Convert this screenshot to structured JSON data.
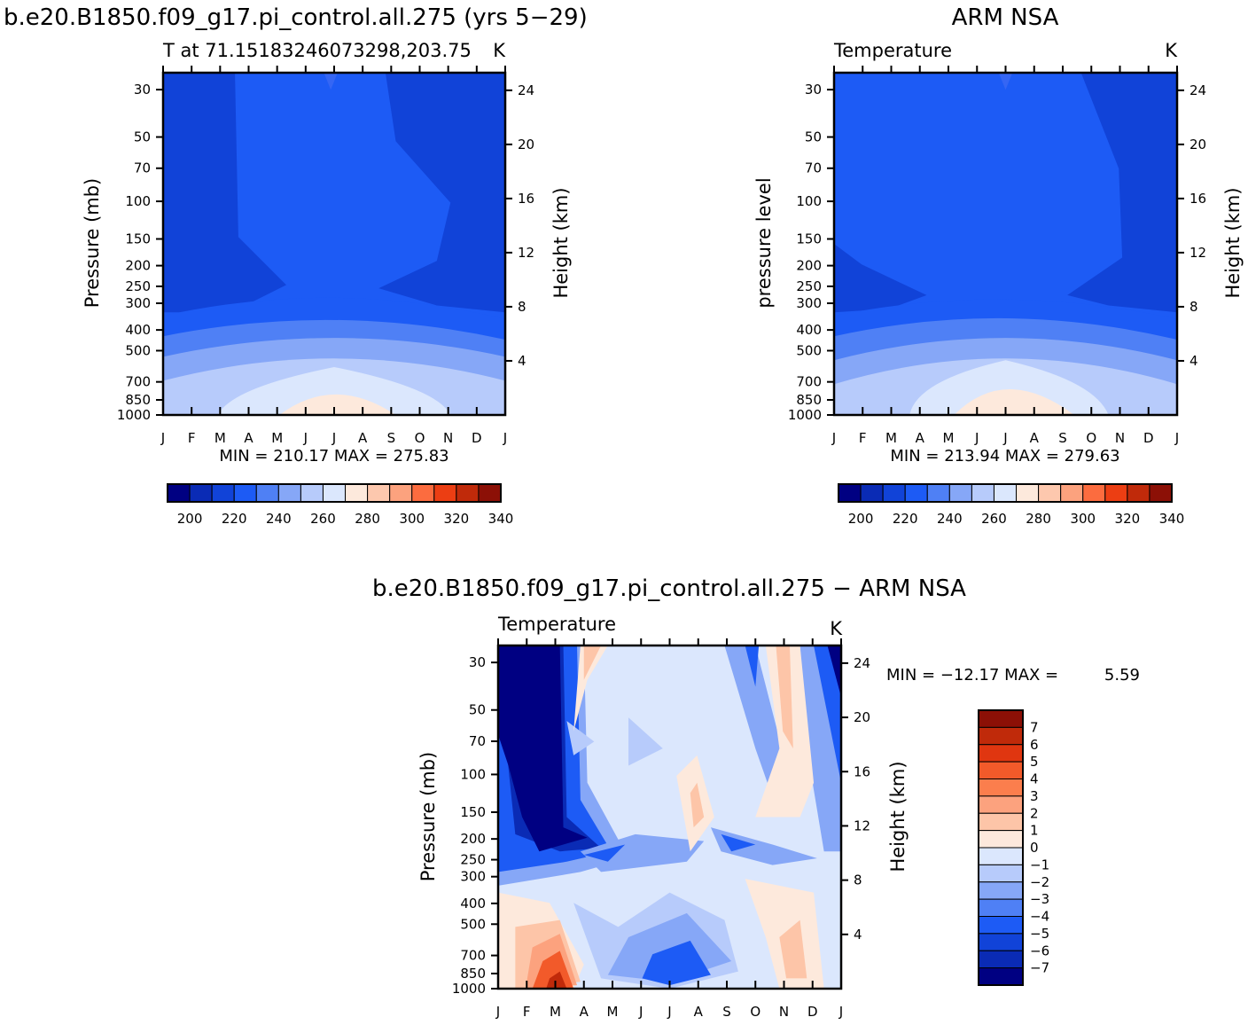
{
  "header": {
    "top_left_title": "b.e20.B1850.f09_g17.pi_control.all.275 (yrs 5−29)",
    "top_right_title": "ARM NSA",
    "bottom_title": "b.e20.B1850.f09_g17.pi_control.all.275 − ARM NSA"
  },
  "axes_common": {
    "months": [
      "J",
      "F",
      "M",
      "A",
      "M",
      "J",
      "J",
      "A",
      "S",
      "O",
      "N",
      "D",
      "J"
    ],
    "pressure_ticks": [
      30,
      50,
      70,
      100,
      150,
      200,
      250,
      300,
      400,
      500,
      700,
      850,
      1000
    ],
    "height_ticks": [
      24,
      20,
      16,
      12,
      8,
      4
    ],
    "height_label": "Height (km)",
    "unit": "K",
    "ylim_pressure_mb": [
      1000,
      25
    ],
    "ylim_height_km": [
      0,
      25.3
    ]
  },
  "chart_data": [
    {
      "type": "heatmap",
      "panel": "model",
      "title": "T at 71.15183246073298,203.75",
      "subtitle_right": "K",
      "ylabel": "Pressure (mb)",
      "stats": "MIN = 210.17 MAX = 275.83",
      "min": 210.17,
      "max": 275.83,
      "colorbar_ticks": [
        "200",
        "220",
        "240",
        "260",
        "280",
        "300",
        "320",
        "340"
      ],
      "colorbar_colors": [
        "#000082",
        "#0a2bb5",
        "#1143d8",
        "#1d5bf5",
        "#4f80f5",
        "#86a7f7",
        "#b7cbfb",
        "#dbe7fd",
        "#fde9dc",
        "#fdc8ae",
        "#fca27e",
        "#fc6c3f",
        "#ec3e13",
        "#c02a0a",
        "#8c1006"
      ],
      "series": [
        {
          "name": "1000",
          "values": [
            259,
            261,
            264,
            266,
            269,
            273,
            275,
            273,
            269,
            264,
            260,
            259,
            259
          ]
        },
        {
          "name": "850",
          "values": [
            254,
            256,
            259,
            261,
            264,
            267,
            269,
            268,
            264,
            259,
            256,
            254,
            254
          ]
        },
        {
          "name": "700",
          "values": [
            246,
            248,
            250,
            252,
            255,
            258,
            260,
            259,
            256,
            252,
            248,
            246,
            246
          ]
        },
        {
          "name": "500",
          "values": [
            230,
            231,
            233,
            235,
            238,
            241,
            243,
            242,
            239,
            235,
            232,
            230,
            230
          ]
        },
        {
          "name": "400",
          "values": [
            223,
            224,
            226,
            228,
            230,
            232,
            233,
            232,
            230,
            227,
            225,
            223,
            223
          ]
        },
        {
          "name": "300",
          "values": [
            217,
            217,
            218,
            220,
            222,
            224,
            225,
            224,
            222,
            220,
            218,
            217,
            217
          ]
        },
        {
          "name": "250",
          "values": [
            214,
            214,
            215,
            217,
            220,
            222,
            223,
            222,
            220,
            217,
            215,
            214,
            214
          ]
        },
        {
          "name": "200",
          "values": [
            215,
            215,
            215,
            217,
            220,
            222,
            223,
            222,
            220,
            217,
            215,
            215,
            215
          ]
        },
        {
          "name": "100",
          "values": [
            213,
            213,
            214,
            218,
            221,
            223,
            223,
            222,
            220,
            216,
            214,
            213,
            213
          ]
        },
        {
          "name": "30",
          "values": [
            211,
            211,
            213,
            218,
            222,
            224,
            225,
            223,
            219,
            214,
            212,
            211,
            211
          ]
        }
      ]
    },
    {
      "type": "heatmap",
      "panel": "observation",
      "title": "Temperature",
      "subtitle_right": "K",
      "ylabel": "pressure level",
      "stats": "MIN = 213.94 MAX = 279.63",
      "min": 213.94,
      "max": 279.63,
      "colorbar_ticks": [
        "200",
        "220",
        "240",
        "260",
        "280",
        "300",
        "320",
        "340"
      ],
      "series": [
        {
          "name": "1000",
          "values": [
            261,
            263,
            266,
            269,
            272,
            276,
            279,
            277,
            273,
            268,
            264,
            262,
            261
          ]
        },
        {
          "name": "850",
          "values": [
            256,
            258,
            261,
            264,
            267,
            270,
            273,
            271,
            268,
            263,
            259,
            257,
            256
          ]
        },
        {
          "name": "700",
          "values": [
            248,
            250,
            252,
            255,
            258,
            261,
            263,
            262,
            259,
            255,
            251,
            249,
            248
          ]
        },
        {
          "name": "500",
          "values": [
            231,
            232,
            234,
            237,
            240,
            243,
            245,
            244,
            241,
            237,
            233,
            231,
            231
          ]
        },
        {
          "name": "300",
          "values": [
            219,
            219,
            220,
            222,
            224,
            226,
            227,
            226,
            224,
            222,
            220,
            219,
            219
          ]
        },
        {
          "name": "250",
          "values": [
            216,
            216,
            217,
            219,
            221,
            223,
            224,
            223,
            221,
            218,
            216,
            215,
            216
          ]
        },
        {
          "name": "100",
          "values": [
            218,
            218,
            219,
            221,
            223,
            225,
            226,
            225,
            223,
            219,
            217,
            216,
            218
          ]
        },
        {
          "name": "30",
          "values": [
            220,
            220,
            221,
            222,
            225,
            227,
            228,
            226,
            222,
            219,
            218,
            219,
            220
          ]
        }
      ]
    },
    {
      "type": "heatmap",
      "panel": "difference",
      "title": "Temperature",
      "subtitle_right": "K",
      "ylabel": "Pressure (mb)",
      "stats_label": "MIN = −12.17 MAX =",
      "stats_value": "5.59",
      "min": -12.17,
      "max": 5.59,
      "colorbar_ticks": [
        "7",
        "6",
        "5",
        "4",
        "3",
        "2",
        "1",
        "0",
        "−1",
        "−2",
        "−3",
        "−4",
        "−5",
        "−6",
        "−7"
      ],
      "colorbar_colors": [
        "#8c1006",
        "#c02a0a",
        "#e03610",
        "#f25a2a",
        "#fb7e4d",
        "#fca27e",
        "#fdc5a8",
        "#fde9dc",
        "#dbe7fd",
        "#b7cbfb",
        "#86a7f7",
        "#4f80f5",
        "#1d5bf5",
        "#1143d8",
        "#0a2bb5",
        "#000082"
      ],
      "regions": [
        {
          "months": "Jan-Mar",
          "levels_mb": "30-250",
          "value": -8
        },
        {
          "months": "Feb-Mar",
          "levels_mb": "700-1000",
          "value": 4
        },
        {
          "months": "Jul-Aug",
          "levels_mb": "850-1000",
          "value": -5
        },
        {
          "months": "Nov",
          "levels_mb": "50-150",
          "value": 1
        },
        {
          "months": "Dec-Jan",
          "levels_mb": "30-100",
          "value": -6
        }
      ]
    }
  ]
}
